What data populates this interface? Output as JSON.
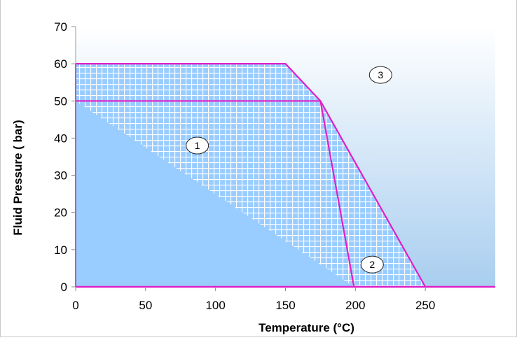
{
  "chart_data": {
    "type": "area",
    "xlabel": "Temperature (°C)",
    "ylabel": "Fluid Pressure ( bar)",
    "xlim": [
      0,
      300
    ],
    "ylim": [
      0,
      70
    ],
    "x_ticks": [
      0,
      50,
      100,
      150,
      200,
      250
    ],
    "y_ticks": [
      0,
      10,
      20,
      30,
      40,
      50,
      60,
      70
    ],
    "grid": false,
    "regions": [
      {
        "label": "1",
        "fill": "solid",
        "points": [
          [
            0,
            0
          ],
          [
            0,
            50
          ],
          [
            175,
            50
          ],
          [
            199,
            0
          ]
        ],
        "label_at": [
          87,
          38
        ]
      },
      {
        "label": "2",
        "fill": "hatched",
        "points": [
          [
            0,
            50
          ],
          [
            0,
            60
          ],
          [
            150,
            60
          ],
          [
            175,
            50
          ],
          [
            250,
            0
          ],
          [
            199,
            0
          ]
        ],
        "label_at": [
          212,
          6
        ]
      },
      {
        "label": "3",
        "fill": "gradient",
        "points": [],
        "label_at": [
          218,
          57
        ]
      }
    ],
    "boundaries": [
      {
        "name": "outer",
        "points": [
          [
            0,
            60
          ],
          [
            150,
            60
          ],
          [
            175,
            50
          ],
          [
            250,
            0
          ]
        ]
      },
      {
        "name": "inner",
        "points": [
          [
            0,
            50
          ],
          [
            175,
            50
          ],
          [
            199,
            0
          ]
        ]
      }
    ],
    "colors": {
      "region_fill": "#99ccff",
      "boundary": "#e020c8",
      "hatch_lines": "#ffffff",
      "background_top": "#ffffff",
      "background_bottom": "#a9ceef",
      "axis": "#e020c8"
    }
  }
}
